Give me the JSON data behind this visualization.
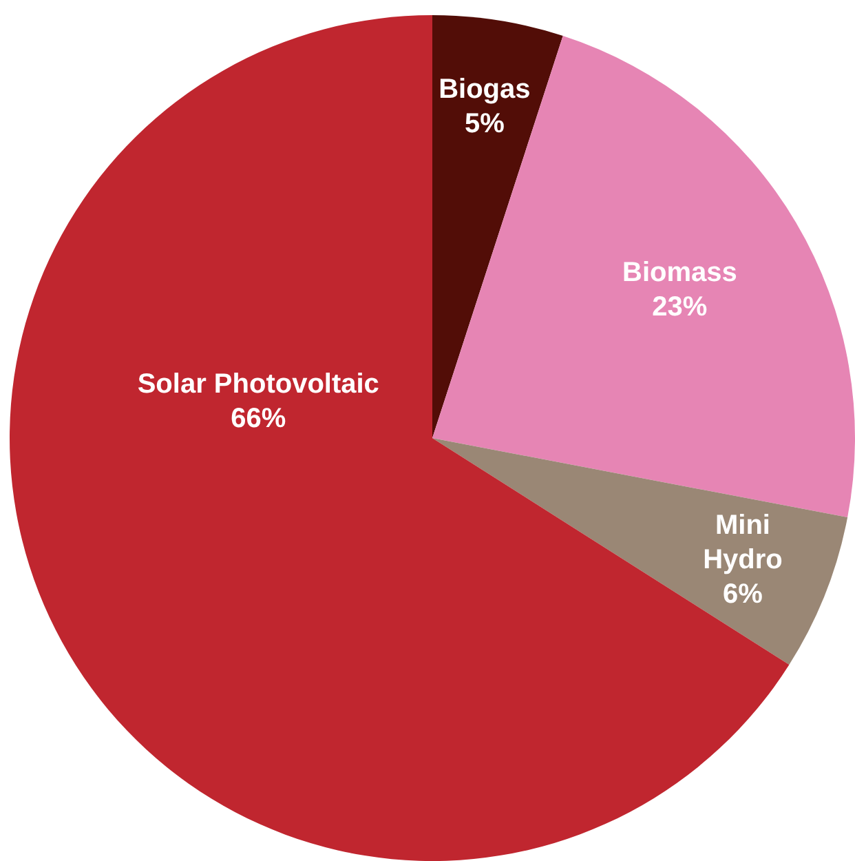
{
  "chart_data": {
    "type": "pie",
    "categories": [
      "Biogas",
      "Biomass",
      "Mini Hydro",
      "Solar Photovoltaic"
    ],
    "values": [
      5,
      23,
      6,
      66
    ],
    "colors": [
      "#520d07",
      "#e685b4",
      "#9a8775",
      "#c0262f"
    ],
    "value_labels": [
      "5%",
      "23%",
      "6%",
      "66%"
    ]
  }
}
